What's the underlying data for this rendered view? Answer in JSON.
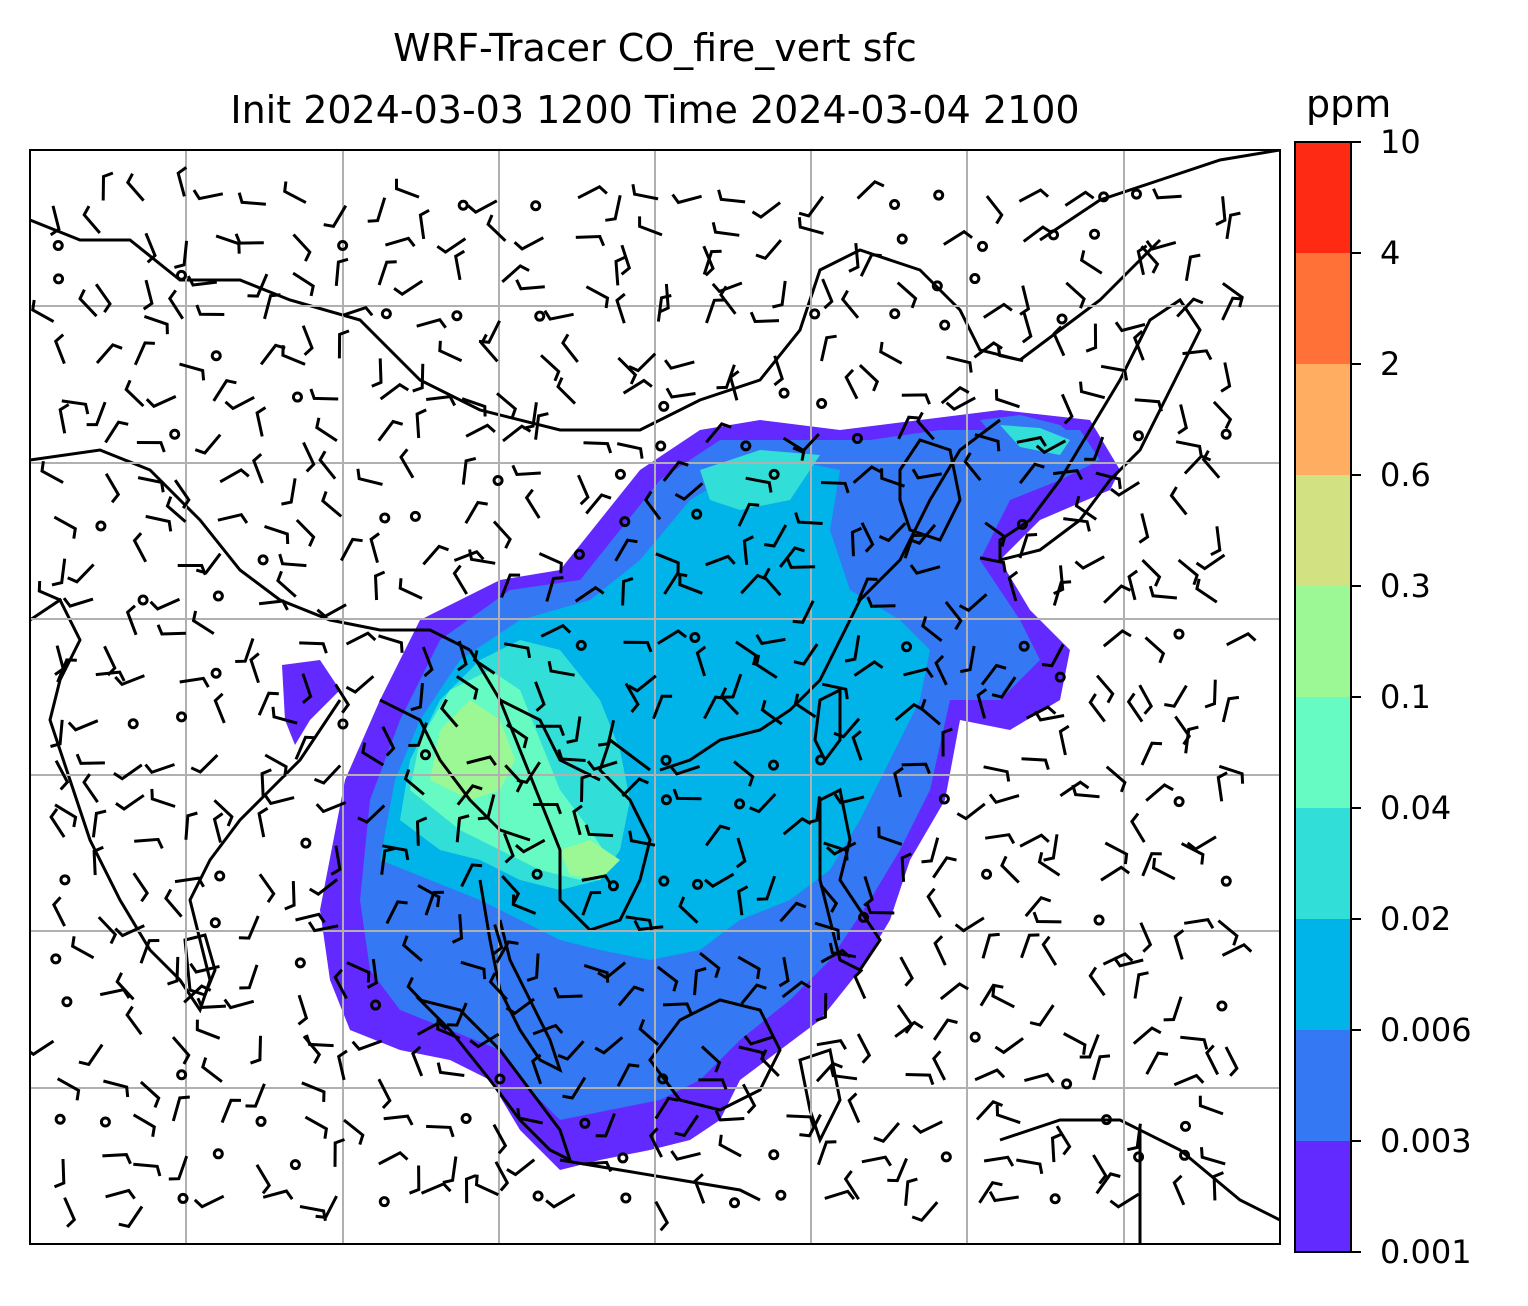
{
  "title": {
    "line1": "WRF-Tracer CO_fire_vert sfc",
    "line2": "Init 2024-03-03 1200 Time 2024-03-04 2100"
  },
  "colorbar": {
    "units": "ppm",
    "ticks": [
      "10",
      "4",
      "2",
      "0.6",
      "0.3",
      "0.1",
      "0.04",
      "0.02",
      "0.006",
      "0.003",
      "0.001"
    ],
    "colors": [
      "#ff2a14",
      "#ff7137",
      "#ffad61",
      "#d2e182",
      "#9bf894",
      "#66fbc3",
      "#32dfd8",
      "#00b3e8",
      "#3478f4",
      "#622afe"
    ]
  },
  "map": {
    "region": "South / Southeast / East Asia",
    "field": "CO_fire_vert surface concentration",
    "overlay": "wind barbs",
    "graticule": "on"
  }
}
